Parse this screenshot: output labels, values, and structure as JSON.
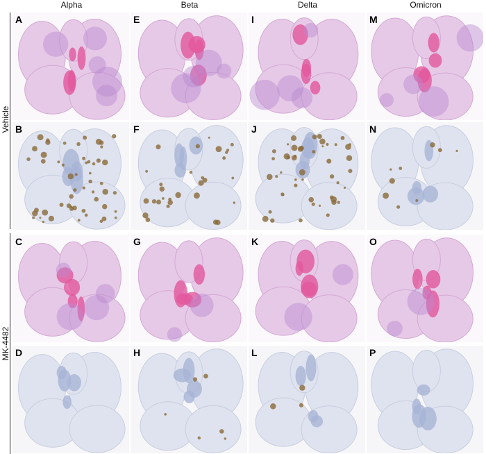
{
  "columns": [
    "Alpha",
    "Beta",
    "Delta",
    "Omicron"
  ],
  "rows": [
    {
      "label": "Vehicle"
    },
    {
      "label": "MK-4482"
    }
  ],
  "panels": [
    {
      "letter": "A",
      "stain": "HE",
      "intensity": 0.8
    },
    {
      "letter": "E",
      "stain": "HE",
      "intensity": 0.7
    },
    {
      "letter": "I",
      "stain": "HE",
      "intensity": 0.6
    },
    {
      "letter": "M",
      "stain": "HE",
      "intensity": 0.6
    },
    {
      "letter": "B",
      "stain": "IHC",
      "intensity": 0.9
    },
    {
      "letter": "F",
      "stain": "IHC",
      "intensity": 0.5
    },
    {
      "letter": "J",
      "stain": "IHC",
      "intensity": 0.8
    },
    {
      "letter": "N",
      "stain": "IHC",
      "intensity": 0.15
    },
    {
      "letter": "C",
      "stain": "HE",
      "intensity": 0.6
    },
    {
      "letter": "G",
      "stain": "HE",
      "intensity": 0.4
    },
    {
      "letter": "K",
      "stain": "HE",
      "intensity": 0.3
    },
    {
      "letter": "O",
      "stain": "HE",
      "intensity": 0.3
    },
    {
      "letter": "D",
      "stain": "IHC",
      "intensity": 0
    },
    {
      "letter": "H",
      "stain": "IHC",
      "intensity": 0.1
    },
    {
      "letter": "L",
      "stain": "IHC",
      "intensity": 0.05
    },
    {
      "letter": "P",
      "stain": "IHC",
      "intensity": 0
    }
  ],
  "colors": {
    "he_tissue": "#e6c9e6",
    "he_dense": "#b98ad0",
    "he_vessel": "#e2589e",
    "ihc_tissue": "#dfe3ef",
    "ihc_vessel": "#a8b4d6",
    "ihc_stain": "#8a6a3a"
  }
}
